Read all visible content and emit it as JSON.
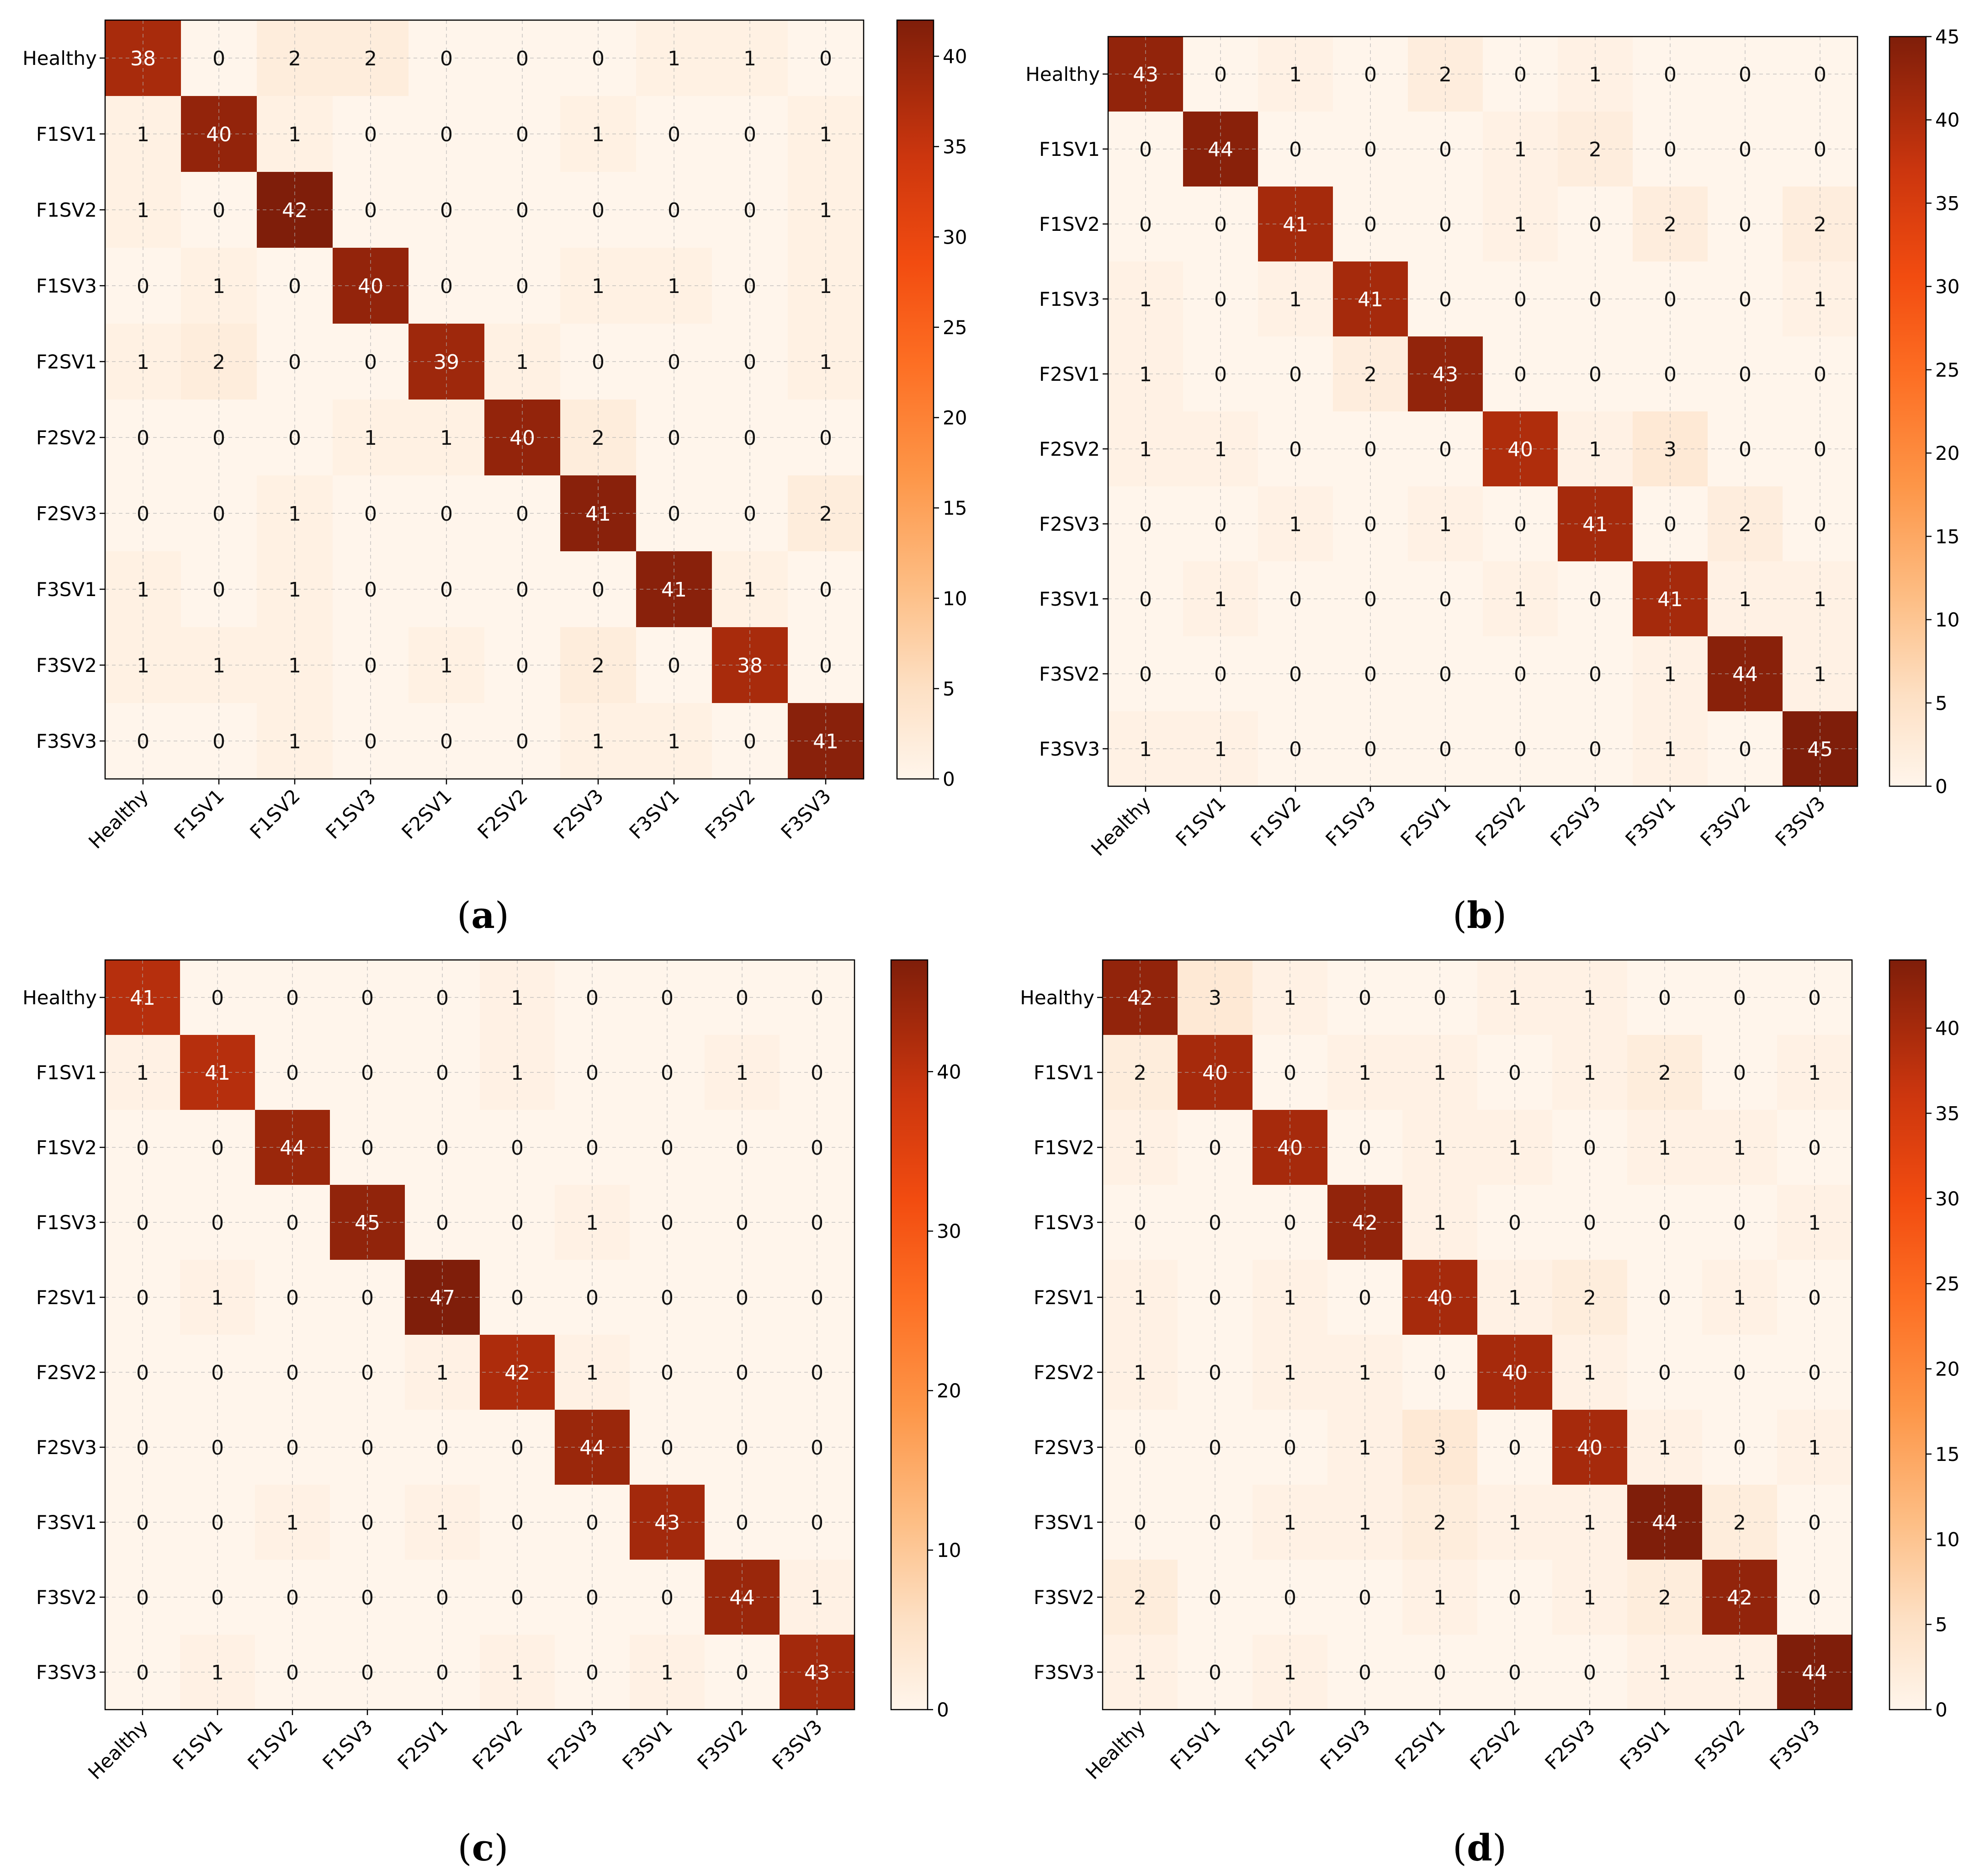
{
  "figure": {
    "captions": [
      {
        "open": "(",
        "letter": "a",
        "close": ")"
      },
      {
        "open": "(",
        "letter": "b",
        "close": ")"
      },
      {
        "open": "(",
        "letter": "c",
        "close": ")"
      },
      {
        "open": "(",
        "letter": "d",
        "close": ")"
      }
    ]
  },
  "chart_data": [
    {
      "type": "heatmap",
      "title": "",
      "xlabel": "",
      "ylabel": "",
      "rows": [
        "Healthy",
        "F1SV1",
        "F1SV2",
        "F1SV3",
        "F2SV1",
        "F2SV2",
        "F2SV3",
        "F3SV1",
        "F3SV2",
        "F3SV3"
      ],
      "cols": [
        "Healthy",
        "F1SV1",
        "F1SV2",
        "F1SV3",
        "F2SV1",
        "F2SV2",
        "F2SV3",
        "F3SV1",
        "F3SV2",
        "F3SV3"
      ],
      "values": [
        [
          38,
          0,
          2,
          2,
          0,
          0,
          0,
          1,
          1,
          0
        ],
        [
          1,
          40,
          1,
          0,
          0,
          0,
          1,
          0,
          0,
          1
        ],
        [
          1,
          0,
          42,
          0,
          0,
          0,
          0,
          0,
          0,
          1
        ],
        [
          0,
          1,
          0,
          40,
          0,
          0,
          1,
          1,
          0,
          1
        ],
        [
          1,
          2,
          0,
          0,
          39,
          1,
          0,
          0,
          0,
          1
        ],
        [
          0,
          0,
          0,
          1,
          1,
          40,
          2,
          0,
          0,
          0
        ],
        [
          0,
          0,
          1,
          0,
          0,
          0,
          41,
          0,
          0,
          2
        ],
        [
          1,
          0,
          1,
          0,
          0,
          0,
          0,
          41,
          1,
          0
        ],
        [
          1,
          1,
          1,
          0,
          1,
          0,
          2,
          0,
          38,
          0
        ],
        [
          0,
          0,
          1,
          0,
          0,
          0,
          1,
          1,
          0,
          41
        ]
      ],
      "colorbar": {
        "min": 0,
        "max": 42,
        "ticks": [
          0,
          5,
          10,
          15,
          20,
          25,
          30,
          35,
          40
        ],
        "colormap": "Oranges-Red"
      },
      "grid": true
    },
    {
      "type": "heatmap",
      "title": "",
      "xlabel": "",
      "ylabel": "",
      "rows": [
        "Healthy",
        "F1SV1",
        "F1SV2",
        "F1SV3",
        "F2SV1",
        "F2SV2",
        "F2SV3",
        "F3SV1",
        "F3SV2",
        "F3SV3"
      ],
      "cols": [
        "Healthy",
        "F1SV1",
        "F1SV2",
        "F1SV3",
        "F2SV1",
        "F2SV2",
        "F2SV3",
        "F3SV1",
        "F3SV2",
        "F3SV3"
      ],
      "values": [
        [
          43,
          0,
          1,
          0,
          2,
          0,
          1,
          0,
          0,
          0
        ],
        [
          0,
          44,
          0,
          0,
          0,
          1,
          2,
          0,
          0,
          0
        ],
        [
          0,
          0,
          41,
          0,
          0,
          1,
          0,
          2,
          0,
          2
        ],
        [
          1,
          0,
          1,
          41,
          0,
          0,
          0,
          0,
          0,
          1
        ],
        [
          1,
          0,
          0,
          2,
          43,
          0,
          0,
          0,
          0,
          0
        ],
        [
          1,
          1,
          0,
          0,
          0,
          40,
          1,
          3,
          0,
          0
        ],
        [
          0,
          0,
          1,
          0,
          1,
          0,
          41,
          0,
          2,
          0
        ],
        [
          0,
          1,
          0,
          0,
          0,
          1,
          0,
          41,
          1,
          1
        ],
        [
          0,
          0,
          0,
          0,
          0,
          0,
          0,
          1,
          44,
          1
        ],
        [
          1,
          1,
          0,
          0,
          0,
          0,
          0,
          1,
          0,
          45
        ]
      ],
      "colorbar": {
        "min": 0,
        "max": 45,
        "ticks": [
          0,
          5,
          10,
          15,
          20,
          25,
          30,
          35,
          40,
          45
        ],
        "colormap": "Oranges-Red"
      },
      "grid": true
    },
    {
      "type": "heatmap",
      "title": "",
      "xlabel": "",
      "ylabel": "",
      "rows": [
        "Healthy",
        "F1SV1",
        "F1SV2",
        "F1SV3",
        "F2SV1",
        "F2SV2",
        "F2SV3",
        "F3SV1",
        "F3SV2",
        "F3SV3"
      ],
      "cols": [
        "Healthy",
        "F1SV1",
        "F1SV2",
        "F1SV3",
        "F2SV1",
        "F2SV2",
        "F2SV3",
        "F3SV1",
        "F3SV2",
        "F3SV3"
      ],
      "values": [
        [
          41,
          0,
          0,
          0,
          0,
          1,
          0,
          0,
          0,
          0
        ],
        [
          1,
          41,
          0,
          0,
          0,
          1,
          0,
          0,
          1,
          0
        ],
        [
          0,
          0,
          44,
          0,
          0,
          0,
          0,
          0,
          0,
          0
        ],
        [
          0,
          0,
          0,
          45,
          0,
          0,
          1,
          0,
          0,
          0
        ],
        [
          0,
          1,
          0,
          0,
          47,
          0,
          0,
          0,
          0,
          0
        ],
        [
          0,
          0,
          0,
          0,
          1,
          42,
          1,
          0,
          0,
          0
        ],
        [
          0,
          0,
          0,
          0,
          0,
          0,
          44,
          0,
          0,
          0
        ],
        [
          0,
          0,
          1,
          0,
          1,
          0,
          0,
          43,
          0,
          0
        ],
        [
          0,
          0,
          0,
          0,
          0,
          0,
          0,
          0,
          44,
          1
        ],
        [
          0,
          1,
          0,
          0,
          0,
          1,
          0,
          1,
          0,
          43
        ]
      ],
      "colorbar": {
        "min": 0,
        "max": 47,
        "ticks": [
          0,
          10,
          20,
          30,
          40
        ],
        "colormap": "Oranges-Red"
      },
      "grid": true
    },
    {
      "type": "heatmap",
      "title": "",
      "xlabel": "",
      "ylabel": "",
      "rows": [
        "Healthy",
        "F1SV1",
        "F1SV2",
        "F1SV3",
        "F2SV1",
        "F2SV2",
        "F2SV3",
        "F3SV1",
        "F3SV2",
        "F3SV3"
      ],
      "cols": [
        "Healthy",
        "F1SV1",
        "F1SV2",
        "F1SV3",
        "F2SV1",
        "F2SV2",
        "F2SV3",
        "F3SV1",
        "F3SV2",
        "F3SV3"
      ],
      "values": [
        [
          42,
          3,
          1,
          0,
          0,
          1,
          1,
          0,
          0,
          0
        ],
        [
          2,
          40,
          0,
          1,
          1,
          0,
          1,
          2,
          0,
          1
        ],
        [
          1,
          0,
          40,
          0,
          1,
          1,
          0,
          1,
          1,
          0
        ],
        [
          0,
          0,
          0,
          42,
          1,
          0,
          0,
          0,
          0,
          1
        ],
        [
          1,
          0,
          1,
          0,
          40,
          1,
          2,
          0,
          1,
          0
        ],
        [
          1,
          0,
          1,
          1,
          0,
          40,
          1,
          0,
          0,
          0
        ],
        [
          0,
          0,
          0,
          1,
          3,
          0,
          40,
          1,
          0,
          1
        ],
        [
          0,
          0,
          1,
          1,
          2,
          1,
          1,
          44,
          2,
          0
        ],
        [
          2,
          0,
          0,
          0,
          1,
          0,
          1,
          2,
          42,
          0
        ],
        [
          1,
          0,
          1,
          0,
          0,
          0,
          0,
          1,
          1,
          44
        ]
      ],
      "colorbar": {
        "min": 0,
        "max": 44,
        "ticks": [
          0,
          5,
          10,
          15,
          20,
          25,
          30,
          35,
          40
        ],
        "colormap": "Oranges-Red"
      },
      "grid": true
    }
  ]
}
